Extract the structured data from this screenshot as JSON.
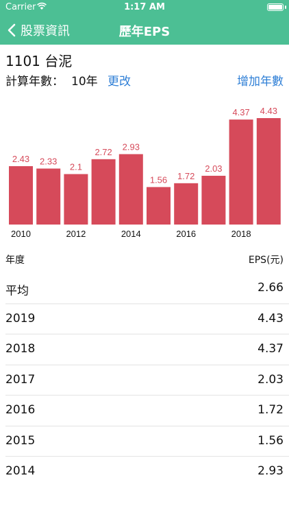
{
  "status": {
    "carrier": "Carrier",
    "time": "1:17 AM"
  },
  "nav": {
    "back_label": "股票資訊",
    "title": "歷年EPS"
  },
  "stock": {
    "title": "1101 台泥"
  },
  "controls": {
    "years_label": "計算年數：",
    "years_value": "10年",
    "change_label": "更改",
    "add_label": "增加年數"
  },
  "colors": {
    "header": "#4cbf94",
    "bar": "#d64a5a",
    "link": "#2f7fd6"
  },
  "chart_data": {
    "type": "bar",
    "categories": [
      "2010",
      "2011",
      "2012",
      "2013",
      "2014",
      "2015",
      "2016",
      "2017",
      "2018",
      "2019"
    ],
    "values": [
      2.43,
      2.33,
      2.1,
      2.72,
      2.93,
      1.56,
      1.72,
      2.03,
      4.37,
      4.43
    ],
    "value_labels": [
      "2.43",
      "2.33",
      "2.1",
      "2.72",
      "2.93",
      "1.56",
      "1.72",
      "2.03",
      "4.37",
      "4.43"
    ],
    "tick_labels": [
      "2010",
      "",
      "2012",
      "",
      "2014",
      "",
      "2016",
      "",
      "2018",
      ""
    ],
    "ylim": [
      0,
      4.43
    ]
  },
  "table": {
    "header_year": "年度",
    "header_eps": "EPS(元)",
    "rows": [
      {
        "year": "平均",
        "eps": "2.66"
      },
      {
        "year": "2019",
        "eps": "4.43"
      },
      {
        "year": "2018",
        "eps": "4.37"
      },
      {
        "year": "2017",
        "eps": "2.03"
      },
      {
        "year": "2016",
        "eps": "1.72"
      },
      {
        "year": "2015",
        "eps": "1.56"
      },
      {
        "year": "2014",
        "eps": "2.93"
      }
    ]
  }
}
